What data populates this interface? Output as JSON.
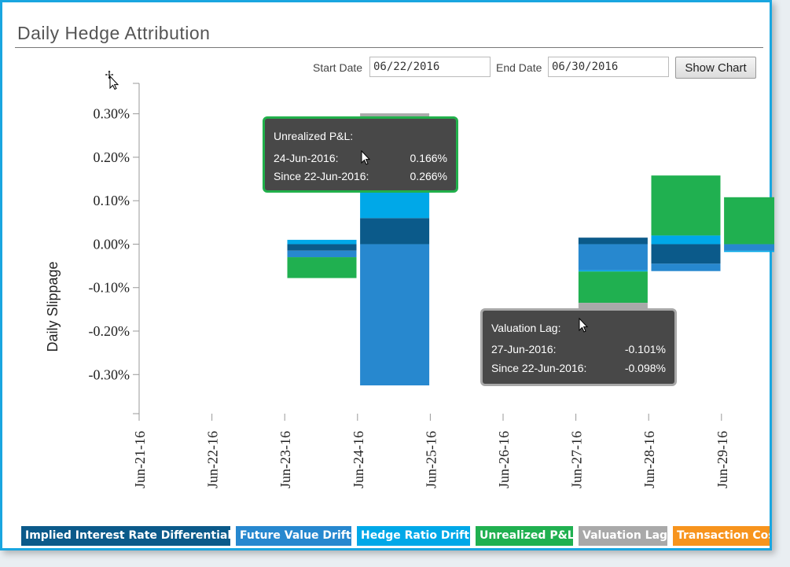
{
  "header": {
    "title": "Daily Hedge Attribution"
  },
  "controls": {
    "start_label": "Start Date",
    "start_value": "06/22/2016",
    "end_label": "End Date",
    "end_value": "06/30/2016",
    "show_button": "Show Chart"
  },
  "chart_data": {
    "type": "bar",
    "stacked": true,
    "ylabel": "Daily Slippage",
    "ylim": [
      -0.0039,
      0.0037
    ],
    "yticks": [
      0.003,
      0.002,
      0.001,
      0.0,
      -0.001,
      -0.002,
      -0.003
    ],
    "ytick_labels": [
      "0.30%",
      "0.20%",
      "0.10%",
      "0.00%",
      "-0.10%",
      "-0.20%",
      "-0.30%"
    ],
    "categories": [
      "Jun-21-16",
      "Jun-22-16",
      "Jun-23-16",
      "Jun-24-16",
      "Jun-25-16",
      "Jun-26-16",
      "Jun-27-16",
      "Jun-28-16",
      "Jun-29-16"
    ],
    "series": [
      {
        "name": "Implied Interest Rate Differential",
        "color": "#0b5a8a",
        "values": [
          null,
          null,
          -0.00015,
          0.0006,
          null,
          null,
          0.00015,
          -0.00045,
          null
        ]
      },
      {
        "name": "Future Value Drift",
        "color": "#2788cf",
        "values": [
          null,
          null,
          -0.00015,
          -0.00325,
          null,
          null,
          -0.0006,
          -0.00017,
          -0.00015
        ]
      },
      {
        "name": "Hedge Ratio Drift",
        "color": "#00a8e8",
        "values": [
          null,
          null,
          0.0001,
          0.0006,
          null,
          null,
          -3e-05,
          0.0002,
          -3e-05
        ]
      },
      {
        "name": "Unrealized P&L",
        "color": "#20b050",
        "values": [
          null,
          null,
          -0.00048,
          0.00166,
          null,
          null,
          -0.00072,
          0.00138,
          0.00108
        ]
      },
      {
        "name": "Valuation Lag",
        "color": "#a9a9a9",
        "values": [
          null,
          null,
          null,
          0.00015,
          null,
          null,
          -0.00101,
          null,
          null
        ]
      },
      {
        "name": "Transaction Costs",
        "color": "#f7941d",
        "values": [
          null,
          null,
          null,
          null,
          null,
          null,
          null,
          null,
          null
        ]
      }
    ],
    "legend_position": "bottom"
  },
  "tooltips": [
    {
      "title": "Unrealized P&L:",
      "row1_label": "24-Jun-2016:",
      "row1_value": "0.166%",
      "row2_label": "Since 22-Jun-2016:",
      "row2_value": "0.266%"
    },
    {
      "title": "Valuation Lag:",
      "row1_label": "27-Jun-2016:",
      "row1_value": "-0.101%",
      "row2_label": "Since 22-Jun-2016:",
      "row2_value": "-0.098%"
    }
  ],
  "legend": [
    {
      "label": "Implied Interest Rate Differential",
      "color": "#0b5a8a"
    },
    {
      "label": "Future Value Drift",
      "color": "#2788cf"
    },
    {
      "label": "Hedge Ratio Drift",
      "color": "#00a8e8"
    },
    {
      "label": "Unrealized P&L",
      "color": "#20b050"
    },
    {
      "label": "Valuation Lag",
      "color": "#a9a9a9"
    },
    {
      "label": "Transaction Cos",
      "color": "#f7941d"
    }
  ]
}
